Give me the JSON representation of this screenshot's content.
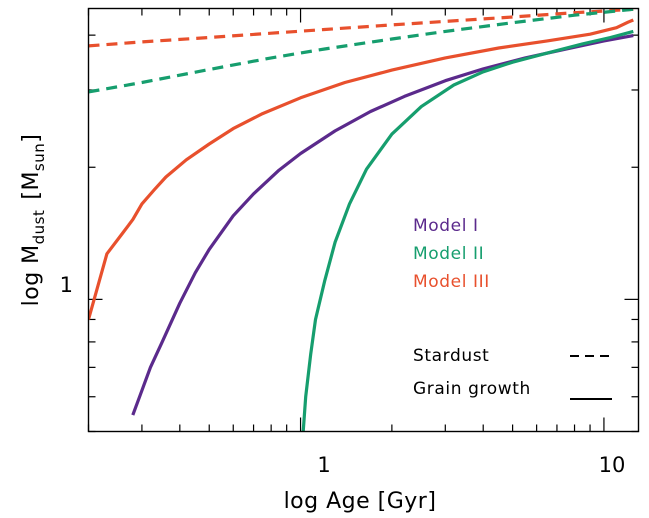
{
  "chart_data": {
    "type": "line",
    "xlabel": "log Age [Gyr]",
    "ylabel_main": "log M",
    "ylabel_sub": "dust",
    "ylabel_unit_main": "[M",
    "ylabel_unit_sub": "sun",
    "ylabel_unit_close": "]",
    "x_scale": "log",
    "y_scale": "log",
    "xlim": [
      0.2,
      13
    ],
    "ylim": [
      0.5,
      4.6
    ],
    "x_tick_labels": [
      "1",
      "10"
    ],
    "y_tick_labels": [
      "1"
    ],
    "grid": false,
    "series": [
      {
        "name": "Model I",
        "color": "#5b2a8c",
        "style": "solid",
        "x": [
          0.28,
          0.3,
          0.32,
          0.35,
          0.4,
          0.45,
          0.5,
          0.6,
          0.7,
          0.85,
          1.0,
          1.3,
          1.7,
          2.2,
          3.0,
          4.0,
          5.5,
          7.5,
          10.0,
          12.5
        ],
        "y": [
          0.545,
          0.62,
          0.7,
          0.8,
          0.98,
          1.15,
          1.3,
          1.55,
          1.74,
          1.97,
          2.15,
          2.42,
          2.68,
          2.9,
          3.15,
          3.35,
          3.55,
          3.72,
          3.88,
          3.99
        ]
      },
      {
        "name": "Model II",
        "color": "#169e6e",
        "style": "solid",
        "x": [
          1.02,
          1.04,
          1.08,
          1.12,
          1.2,
          1.3,
          1.45,
          1.65,
          2.0,
          2.5,
          3.2,
          4.0,
          5.0,
          6.5,
          8.5,
          10.5,
          12.5
        ],
        "y": [
          0.5,
          0.6,
          0.75,
          0.9,
          1.1,
          1.35,
          1.65,
          1.98,
          2.38,
          2.75,
          3.08,
          3.3,
          3.47,
          3.64,
          3.82,
          3.95,
          4.08
        ]
      },
      {
        "name": "Model III",
        "color": "#e8502d",
        "style": "solid",
        "x": [
          0.2,
          0.23,
          0.26,
          0.28,
          0.3,
          0.33,
          0.36,
          0.42,
          0.5,
          0.6,
          0.75,
          1.0,
          1.4,
          2.0,
          3.0,
          4.5,
          6.5,
          9.0,
          11.0,
          12.0,
          12.5
        ],
        "y": [
          0.9,
          1.27,
          1.42,
          1.52,
          1.65,
          1.78,
          1.9,
          2.08,
          2.26,
          2.45,
          2.65,
          2.88,
          3.12,
          3.33,
          3.55,
          3.74,
          3.88,
          4.02,
          4.16,
          4.28,
          4.33
        ]
      }
    ],
    "stardust_series": [
      {
        "color": "#e8502d",
        "style": "dashed",
        "x": [
          0.2,
          0.3,
          0.5,
          0.8,
          1.2,
          2.0,
          3.0,
          5.0,
          8.0,
          12.5
        ],
        "y": [
          3.78,
          3.86,
          3.95,
          4.04,
          4.12,
          4.22,
          4.3,
          4.4,
          4.5,
          4.58
        ]
      },
      {
        "color": "#169e6e",
        "style": "dashed",
        "x": [
          0.2,
          0.3,
          0.5,
          0.8,
          1.2,
          2.0,
          3.0,
          5.0,
          8.0,
          12.5
        ],
        "y": [
          2.97,
          3.12,
          3.34,
          3.55,
          3.72,
          3.92,
          4.08,
          4.27,
          4.44,
          4.58
        ]
      }
    ],
    "legend": {
      "placement": "lower-right",
      "models": [
        {
          "label": "Model I",
          "color": "#5b2a8c"
        },
        {
          "label": "Model II",
          "color": "#169e6e"
        },
        {
          "label": "Model III",
          "color": "#e8502d"
        }
      ],
      "styles": [
        {
          "label": "Stardust",
          "style": "dashed"
        },
        {
          "label": "Grain growth",
          "style": "solid"
        }
      ]
    }
  }
}
